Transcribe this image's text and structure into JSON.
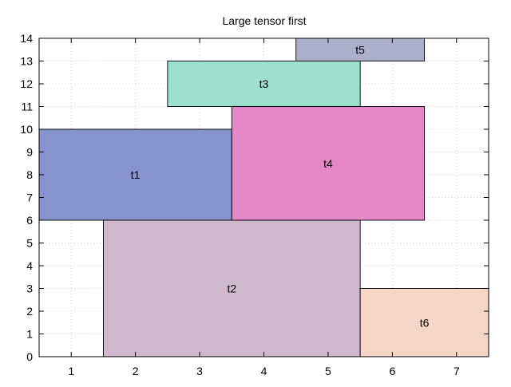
{
  "chart_data": {
    "type": "rectangle-layout",
    "title": "Large tensor first",
    "xlabel": "",
    "ylabel": "",
    "xlim": [
      0.5,
      7.5
    ],
    "ylim": [
      0,
      14
    ],
    "x_ticks": [
      1,
      2,
      3,
      4,
      5,
      6,
      7
    ],
    "y_ticks": [
      0,
      1,
      2,
      3,
      4,
      5,
      6,
      7,
      8,
      9,
      10,
      11,
      12,
      13,
      14
    ],
    "grid": true,
    "rects": [
      {
        "label": "t1",
        "x0": 0.5,
        "x1": 3.5,
        "y0": 6,
        "y1": 10,
        "color": "#8793cd"
      },
      {
        "label": "t2",
        "x0": 1.5,
        "x1": 5.5,
        "y0": 0,
        "y1": 6,
        "color": "#cfb8cd"
      },
      {
        "label": "t3",
        "x0": 2.5,
        "x1": 5.5,
        "y0": 11,
        "y1": 13,
        "color": "#9de0cd"
      },
      {
        "label": "t4",
        "x0": 3.5,
        "x1": 6.5,
        "y0": 6,
        "y1": 11,
        "color": "#e488c8"
      },
      {
        "label": "t5",
        "x0": 4.5,
        "x1": 6.5,
        "y0": 13,
        "y1": 14,
        "color": "#abafcc"
      },
      {
        "label": "t6",
        "x0": 5.5,
        "x1": 7.5,
        "y0": 0,
        "y1": 3,
        "color": "#f5d5c5"
      }
    ]
  }
}
